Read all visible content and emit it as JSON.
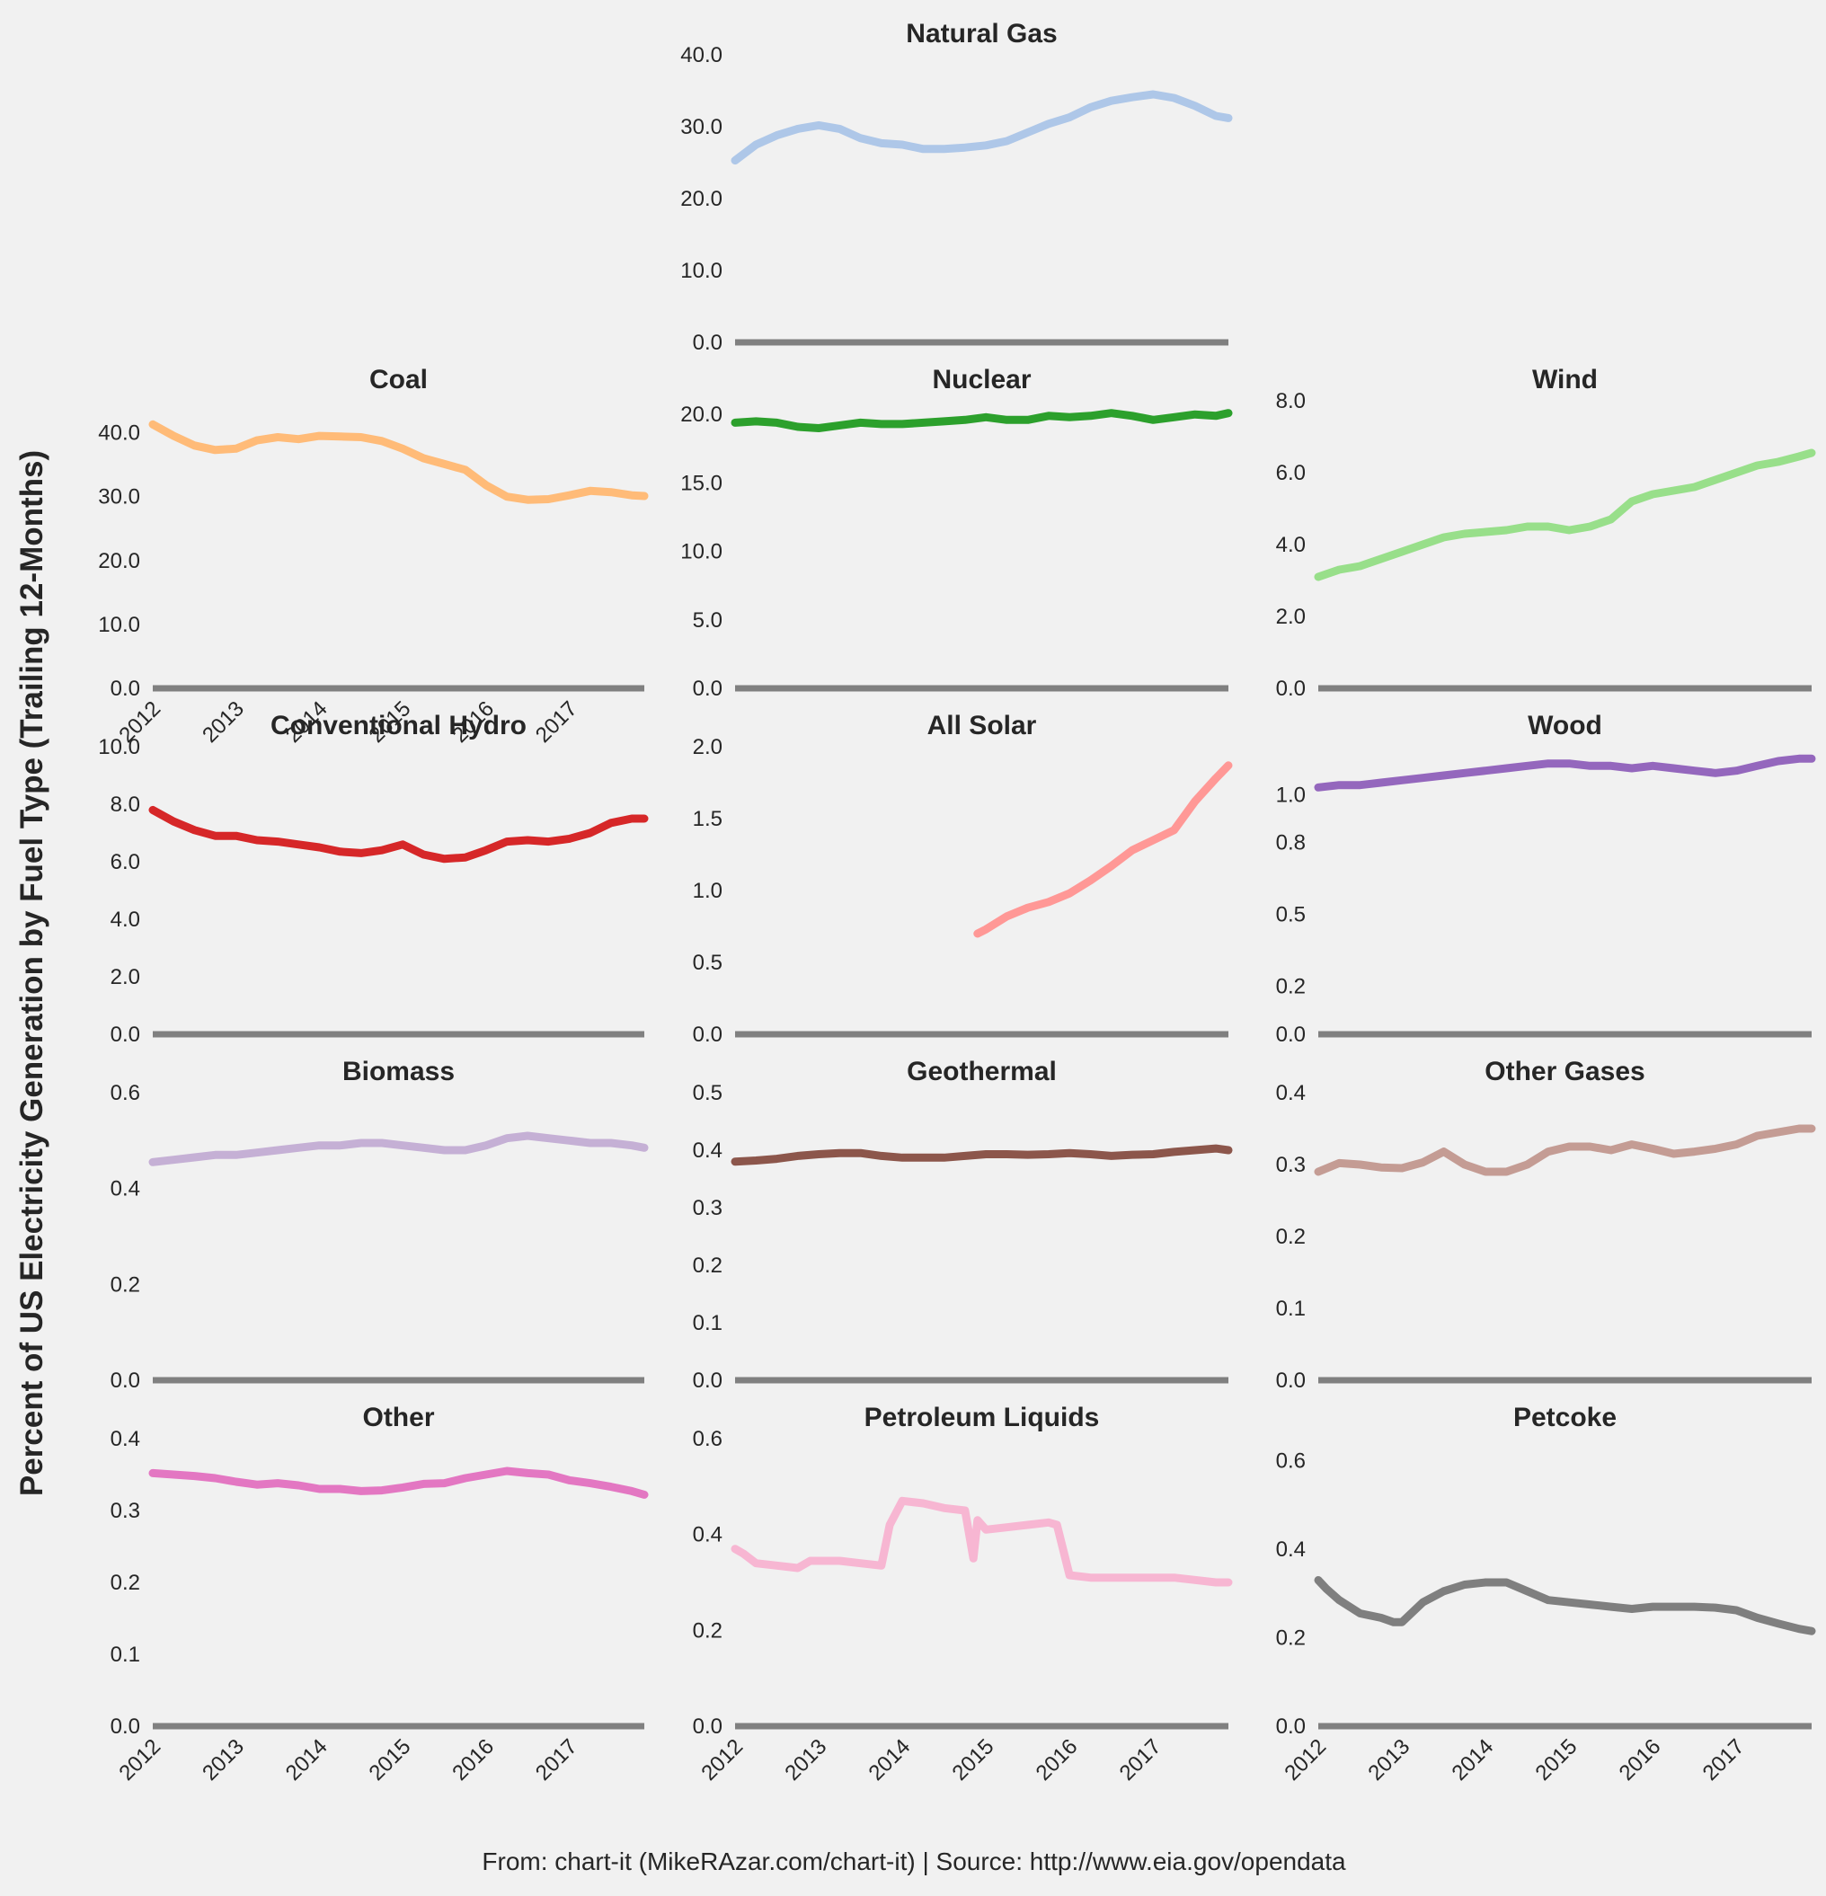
{
  "ylabel": "Percent of US Electricity Generation by Fuel Type (Trailing 12-Months)",
  "footer": "From: chart-it (MikeRAzar.com/chart-it) | Source: http://www.eia.gov/opendata",
  "chart_data": [
    {
      "type": "line",
      "title": "Natural Gas",
      "color": "#aec7e8",
      "ylim": [
        0,
        40
      ],
      "yticks": [
        "0.0",
        "10.0",
        "20.0",
        "30.0",
        "40.0"
      ],
      "xticks": [],
      "x": [
        2012.0,
        2012.25,
        2012.5,
        2012.75,
        2013.0,
        2013.25,
        2013.5,
        2013.75,
        2014.0,
        2014.25,
        2014.5,
        2014.75,
        2015.0,
        2015.25,
        2015.5,
        2015.75,
        2016.0,
        2016.25,
        2016.5,
        2016.75,
        2017.0,
        2017.25,
        2017.5,
        2017.75,
        2017.9
      ],
      "y": [
        25.3,
        27.5,
        28.8,
        29.7,
        30.2,
        29.7,
        28.4,
        27.7,
        27.5,
        26.9,
        26.9,
        27.1,
        27.4,
        28.0,
        29.2,
        30.4,
        31.3,
        32.7,
        33.6,
        34.1,
        34.5,
        34.0,
        32.9,
        31.5,
        31.2
      ]
    },
    {
      "type": "line",
      "title": "Coal",
      "color": "#ffbb78",
      "ylim": [
        0,
        45
      ],
      "yticks": [
        "0.0",
        "10.0",
        "20.0",
        "30.0",
        "40.0"
      ],
      "xticks": [
        "2012",
        "2013",
        "2014",
        "2015",
        "2016",
        "2017"
      ],
      "x": [
        2012.0,
        2012.25,
        2012.5,
        2012.75,
        2013.0,
        2013.25,
        2013.5,
        2013.75,
        2014.0,
        2014.25,
        2014.5,
        2014.75,
        2015.0,
        2015.25,
        2015.5,
        2015.75,
        2016.0,
        2016.25,
        2016.5,
        2016.75,
        2017.0,
        2017.25,
        2017.5,
        2017.75,
        2017.9
      ],
      "y": [
        41.3,
        39.5,
        38.0,
        37.3,
        37.5,
        38.8,
        39.3,
        39.0,
        39.5,
        39.4,
        39.3,
        38.7,
        37.5,
        36.0,
        35.1,
        34.2,
        31.8,
        30.0,
        29.5,
        29.6,
        30.2,
        30.9,
        30.7,
        30.2,
        30.1
      ]
    },
    {
      "type": "line",
      "title": "Nuclear",
      "color": "#2ca02c",
      "ylim": [
        0,
        21
      ],
      "yticks": [
        "0.0",
        "5.0",
        "10.0",
        "15.0",
        "20.0"
      ],
      "xticks": [],
      "x": [
        2012.0,
        2012.25,
        2012.5,
        2012.75,
        2013.0,
        2013.25,
        2013.5,
        2013.75,
        2014.0,
        2014.25,
        2014.5,
        2014.75,
        2015.0,
        2015.25,
        2015.5,
        2015.75,
        2016.0,
        2016.25,
        2016.5,
        2016.75,
        2017.0,
        2017.25,
        2017.5,
        2017.75,
        2017.9
      ],
      "y": [
        19.4,
        19.5,
        19.4,
        19.1,
        19.0,
        19.2,
        19.4,
        19.3,
        19.3,
        19.4,
        19.5,
        19.6,
        19.8,
        19.6,
        19.6,
        19.9,
        19.8,
        19.9,
        20.1,
        19.9,
        19.6,
        19.8,
        20.0,
        19.9,
        20.1
      ]
    },
    {
      "type": "line",
      "title": "Wind",
      "color": "#98df8a",
      "ylim": [
        0,
        8
      ],
      "yticks": [
        "0.0",
        "2.0",
        "4.0",
        "6.0",
        "8.0"
      ],
      "xticks": [],
      "x": [
        2012.0,
        2012.25,
        2012.5,
        2012.75,
        2013.0,
        2013.25,
        2013.5,
        2013.75,
        2014.0,
        2014.25,
        2014.5,
        2014.75,
        2015.0,
        2015.25,
        2015.5,
        2015.75,
        2016.0,
        2016.25,
        2016.5,
        2016.75,
        2017.0,
        2017.25,
        2017.5,
        2017.75,
        2017.9
      ],
      "y": [
        3.1,
        3.3,
        3.4,
        3.6,
        3.8,
        4.0,
        4.2,
        4.3,
        4.35,
        4.4,
        4.5,
        4.5,
        4.4,
        4.5,
        4.7,
        5.2,
        5.4,
        5.5,
        5.6,
        5.8,
        6.0,
        6.2,
        6.3,
        6.45,
        6.55
      ]
    },
    {
      "type": "line",
      "title": "Conventional Hydro",
      "color": "#d62728",
      "ylim": [
        0,
        10
      ],
      "yticks": [
        "0.0",
        "2.0",
        "4.0",
        "6.0",
        "8.0",
        "10.0"
      ],
      "xticks": [],
      "x": [
        2012.0,
        2012.25,
        2012.5,
        2012.75,
        2013.0,
        2013.25,
        2013.5,
        2013.75,
        2014.0,
        2014.25,
        2014.5,
        2014.75,
        2015.0,
        2015.25,
        2015.5,
        2015.75,
        2016.0,
        2016.25,
        2016.5,
        2016.75,
        2017.0,
        2017.25,
        2017.5,
        2017.75,
        2017.9
      ],
      "y": [
        7.8,
        7.4,
        7.1,
        6.9,
        6.9,
        6.75,
        6.7,
        6.6,
        6.5,
        6.35,
        6.3,
        6.4,
        6.6,
        6.25,
        6.1,
        6.15,
        6.4,
        6.7,
        6.75,
        6.7,
        6.8,
        7.0,
        7.35,
        7.5,
        7.5
      ]
    },
    {
      "type": "line",
      "title": "All Solar",
      "color": "#ff9896",
      "ylim": [
        0,
        2
      ],
      "yticks": [
        "0.0",
        "0.5",
        "1.0",
        "1.5",
        "2.0"
      ],
      "xticks": [],
      "x": [
        2014.9,
        2015.0,
        2015.25,
        2015.5,
        2015.75,
        2016.0,
        2016.25,
        2016.5,
        2016.75,
        2017.0,
        2017.25,
        2017.5,
        2017.75,
        2017.9
      ],
      "y": [
        0.7,
        0.73,
        0.82,
        0.88,
        0.92,
        0.98,
        1.07,
        1.17,
        1.28,
        1.35,
        1.42,
        1.62,
        1.78,
        1.87
      ]
    },
    {
      "type": "line",
      "title": "Wood",
      "color": "#9467bd",
      "ylim": [
        0,
        1.2
      ],
      "yticks": [
        "0.0",
        "0.2",
        "0.5",
        "0.8",
        "1.0"
      ],
      "xticks": [],
      "x": [
        2012.0,
        2012.25,
        2012.5,
        2012.75,
        2013.0,
        2013.25,
        2013.5,
        2013.75,
        2014.0,
        2014.25,
        2014.5,
        2014.75,
        2015.0,
        2015.25,
        2015.5,
        2015.75,
        2016.0,
        2016.25,
        2016.5,
        2016.75,
        2017.0,
        2017.25,
        2017.5,
        2017.75,
        2017.9
      ],
      "y": [
        1.03,
        1.04,
        1.04,
        1.05,
        1.06,
        1.07,
        1.08,
        1.09,
        1.1,
        1.11,
        1.12,
        1.13,
        1.13,
        1.12,
        1.12,
        1.11,
        1.12,
        1.11,
        1.1,
        1.09,
        1.1,
        1.12,
        1.14,
        1.15,
        1.15
      ]
    },
    {
      "type": "line",
      "title": "Biomass",
      "color": "#c5b0d5",
      "ylim": [
        0,
        0.6
      ],
      "yticks": [
        "0.0",
        "0.2",
        "0.4",
        "0.6"
      ],
      "xticks": [],
      "x": [
        2012.0,
        2012.25,
        2012.5,
        2012.75,
        2013.0,
        2013.25,
        2013.5,
        2013.75,
        2014.0,
        2014.25,
        2014.5,
        2014.75,
        2015.0,
        2015.25,
        2015.5,
        2015.75,
        2016.0,
        2016.25,
        2016.5,
        2016.75,
        2017.0,
        2017.25,
        2017.5,
        2017.75,
        2017.9
      ],
      "y": [
        0.455,
        0.46,
        0.465,
        0.47,
        0.47,
        0.475,
        0.48,
        0.485,
        0.49,
        0.49,
        0.495,
        0.495,
        0.49,
        0.485,
        0.48,
        0.48,
        0.49,
        0.505,
        0.51,
        0.505,
        0.5,
        0.495,
        0.495,
        0.49,
        0.485
      ]
    },
    {
      "type": "line",
      "title": "Geothermal",
      "color": "#8c564b",
      "ylim": [
        0,
        0.5
      ],
      "yticks": [
        "0.0",
        "0.1",
        "0.2",
        "0.3",
        "0.4",
        "0.5"
      ],
      "xticks": [],
      "x": [
        2012.0,
        2012.25,
        2012.5,
        2012.75,
        2013.0,
        2013.25,
        2013.5,
        2013.75,
        2014.0,
        2014.25,
        2014.5,
        2014.75,
        2015.0,
        2015.25,
        2015.5,
        2015.75,
        2016.0,
        2016.25,
        2016.5,
        2016.75,
        2017.0,
        2017.25,
        2017.5,
        2017.75,
        2017.9
      ],
      "y": [
        0.38,
        0.382,
        0.385,
        0.39,
        0.393,
        0.395,
        0.395,
        0.39,
        0.387,
        0.387,
        0.387,
        0.39,
        0.393,
        0.393,
        0.392,
        0.393,
        0.395,
        0.393,
        0.39,
        0.392,
        0.393,
        0.397,
        0.4,
        0.403,
        0.4
      ]
    },
    {
      "type": "line",
      "title": "Other Gases",
      "color": "#c49c94",
      "ylim": [
        0,
        0.4
      ],
      "yticks": [
        "0.0",
        "0.1",
        "0.2",
        "0.3",
        "0.4"
      ],
      "xticks": [],
      "x": [
        2012.0,
        2012.25,
        2012.5,
        2012.75,
        2013.0,
        2013.25,
        2013.5,
        2013.75,
        2014.0,
        2014.25,
        2014.5,
        2014.75,
        2015.0,
        2015.25,
        2015.5,
        2015.75,
        2016.0,
        2016.25,
        2016.5,
        2016.75,
        2017.0,
        2017.25,
        2017.5,
        2017.75,
        2017.9
      ],
      "y": [
        0.29,
        0.302,
        0.3,
        0.296,
        0.295,
        0.303,
        0.318,
        0.3,
        0.29,
        0.29,
        0.3,
        0.318,
        0.325,
        0.325,
        0.32,
        0.328,
        0.322,
        0.315,
        0.318,
        0.322,
        0.328,
        0.34,
        0.345,
        0.35,
        0.35
      ]
    },
    {
      "type": "line",
      "title": "Other",
      "color": "#e377c2",
      "ylim": [
        0,
        0.4
      ],
      "yticks": [
        "0.0",
        "0.1",
        "0.2",
        "0.3",
        "0.4"
      ],
      "xticks": [
        "2012",
        "2013",
        "2014",
        "2015",
        "2016",
        "2017"
      ],
      "x": [
        2012.0,
        2012.25,
        2012.5,
        2012.75,
        2013.0,
        2013.25,
        2013.5,
        2013.75,
        2014.0,
        2014.25,
        2014.5,
        2014.75,
        2015.0,
        2015.25,
        2015.5,
        2015.75,
        2016.0,
        2016.25,
        2016.5,
        2016.75,
        2017.0,
        2017.25,
        2017.5,
        2017.75,
        2017.9
      ],
      "y": [
        0.352,
        0.35,
        0.348,
        0.345,
        0.34,
        0.336,
        0.338,
        0.335,
        0.33,
        0.33,
        0.327,
        0.328,
        0.332,
        0.337,
        0.338,
        0.345,
        0.35,
        0.355,
        0.352,
        0.35,
        0.342,
        0.338,
        0.333,
        0.327,
        0.322
      ]
    },
    {
      "type": "line",
      "title": "Petroleum Liquids",
      "color": "#f7b6d2",
      "ylim": [
        0,
        0.6
      ],
      "yticks": [
        "0.0",
        "0.2",
        "0.4",
        "0.6"
      ],
      "xticks": [
        "2012",
        "2013",
        "2014",
        "2015",
        "2016",
        "2017"
      ],
      "x": [
        2012.0,
        2012.1,
        2012.25,
        2012.5,
        2012.75,
        2012.9,
        2013.25,
        2013.5,
        2013.75,
        2013.85,
        2014.0,
        2014.25,
        2014.5,
        2014.75,
        2014.85,
        2014.9,
        2015.0,
        2015.25,
        2015.5,
        2015.75,
        2015.85,
        2016.0,
        2016.25,
        2016.5,
        2016.75,
        2017.0,
        2017.25,
        2017.5,
        2017.75,
        2017.9
      ],
      "y": [
        0.37,
        0.36,
        0.34,
        0.335,
        0.33,
        0.345,
        0.345,
        0.34,
        0.335,
        0.42,
        0.47,
        0.465,
        0.455,
        0.45,
        0.35,
        0.43,
        0.41,
        0.415,
        0.42,
        0.425,
        0.42,
        0.315,
        0.31,
        0.31,
        0.31,
        0.31,
        0.31,
        0.305,
        0.3,
        0.3
      ]
    },
    {
      "type": "line",
      "title": "Petcoke",
      "color": "#7f7f7f",
      "ylim": [
        0,
        0.65
      ],
      "yticks": [
        "0.0",
        "0.2",
        "0.4",
        "0.6"
      ],
      "xticks": [
        "2012",
        "2013",
        "2014",
        "2015",
        "2016",
        "2017"
      ],
      "x": [
        2012.0,
        2012.1,
        2012.25,
        2012.5,
        2012.75,
        2012.9,
        2013.0,
        2013.25,
        2013.5,
        2013.75,
        2014.0,
        2014.25,
        2014.5,
        2014.75,
        2015.0,
        2015.25,
        2015.5,
        2015.75,
        2016.0,
        2016.25,
        2016.5,
        2016.75,
        2017.0,
        2017.25,
        2017.5,
        2017.75,
        2017.9
      ],
      "y": [
        0.33,
        0.31,
        0.285,
        0.255,
        0.245,
        0.235,
        0.235,
        0.28,
        0.305,
        0.32,
        0.325,
        0.325,
        0.305,
        0.285,
        0.28,
        0.275,
        0.27,
        0.265,
        0.27,
        0.27,
        0.27,
        0.268,
        0.262,
        0.245,
        0.232,
        0.22,
        0.215
      ]
    }
  ]
}
